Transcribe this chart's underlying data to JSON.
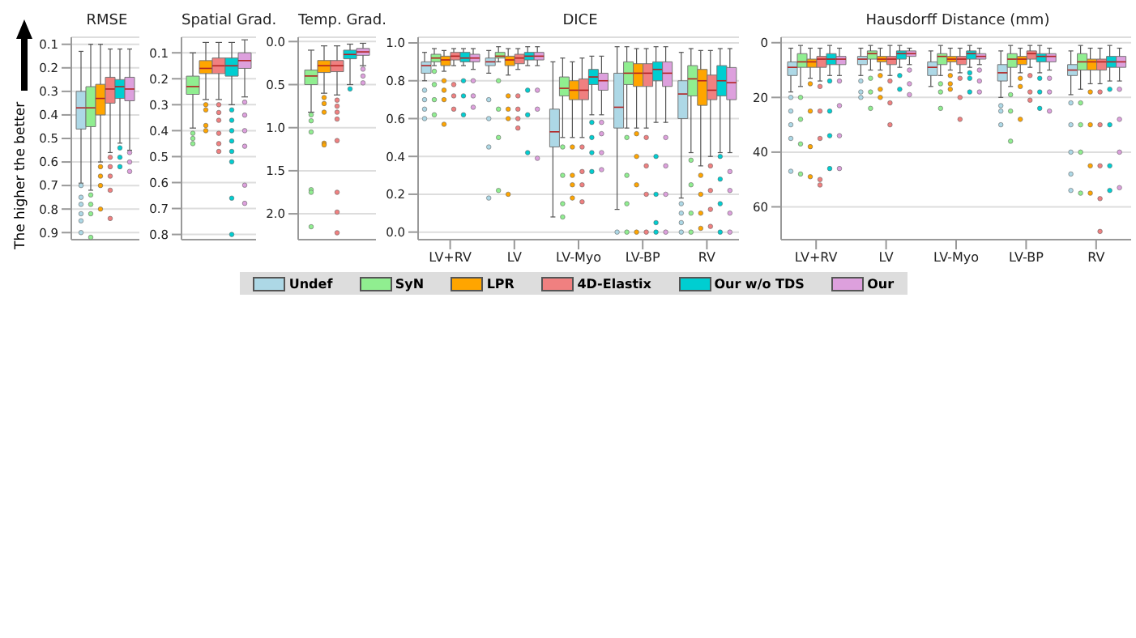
{
  "chart_data": [
    {
      "type": "box",
      "title": "RMSE",
      "ylabel": "The higher the better",
      "categories": [
        null
      ],
      "ylim": [
        0.93,
        0.07
      ],
      "yticks": [
        0.1,
        0.2,
        0.3,
        0.4,
        0.5,
        0.6,
        0.7,
        0.8,
        0.9
      ],
      "grid": "y",
      "tick_labels": "y",
      "series": [
        {
          "color": "#add8e6",
          "boxes": [
            {
              "low": 0.13,
              "q1": 0.3,
              "median": 0.37,
              "q3": 0.46,
              "high": 0.69,
              "outliers": [
                0.7,
                0.75,
                0.78,
                0.82,
                0.85,
                0.9
              ]
            }
          ]
        },
        {
          "color": "#90ee90",
          "boxes": [
            {
              "low": 0.1,
              "q1": 0.28,
              "median": 0.37,
              "q3": 0.45,
              "high": 0.72,
              "outliers": [
                0.74,
                0.78,
                0.82,
                0.92
              ]
            }
          ]
        },
        {
          "color": "#ffa500",
          "boxes": [
            {
              "low": 0.1,
              "q1": 0.27,
              "median": 0.33,
              "q3": 0.4,
              "high": 0.6,
              "outliers": [
                0.62,
                0.66,
                0.7,
                0.8
              ]
            }
          ]
        },
        {
          "color": "#f08080",
          "boxes": [
            {
              "low": 0.12,
              "q1": 0.24,
              "median": 0.29,
              "q3": 0.35,
              "high": 0.56,
              "outliers": [
                0.58,
                0.62,
                0.66,
                0.72,
                0.84
              ]
            }
          ]
        },
        {
          "color": "#00ced1",
          "boxes": [
            {
              "low": 0.12,
              "q1": 0.25,
              "median": 0.28,
              "q3": 0.33,
              "high": 0.52,
              "outliers": [
                0.54,
                0.58,
                0.62
              ]
            }
          ]
        },
        {
          "color": "#dda0dd",
          "boxes": [
            {
              "low": 0.12,
              "q1": 0.24,
              "median": 0.29,
              "q3": 0.34,
              "high": 0.55,
              "outliers": [
                0.56,
                0.6,
                0.64
              ]
            }
          ]
        }
      ]
    },
    {
      "type": "box",
      "title": "Spatial Grad.",
      "categories": [
        null
      ],
      "ylim": [
        0.82,
        0.04
      ],
      "yticks": [
        0.1,
        0.2,
        0.3,
        0.4,
        0.5,
        0.6,
        0.7,
        0.8
      ],
      "grid": "y",
      "tick_labels": "y",
      "series": [
        {
          "color": "#90ee90",
          "boxes": [
            {
              "low": 0.1,
              "q1": 0.19,
              "median": 0.23,
              "q3": 0.26,
              "high": 0.39,
              "outliers": [
                0.41,
                0.43,
                0.45
              ]
            }
          ]
        },
        {
          "color": "#ffa500",
          "boxes": [
            {
              "low": 0.06,
              "q1": 0.13,
              "median": 0.16,
              "q3": 0.18,
              "high": 0.28,
              "outliers": [
                0.3,
                0.32,
                0.38,
                0.4
              ]
            }
          ]
        },
        {
          "color": "#f08080",
          "boxes": [
            {
              "low": 0.06,
              "q1": 0.12,
              "median": 0.15,
              "q3": 0.18,
              "high": 0.28,
              "outliers": [
                0.3,
                0.33,
                0.36,
                0.41,
                0.45,
                0.48
              ]
            }
          ]
        },
        {
          "color": "#00ced1",
          "boxes": [
            {
              "low": 0.06,
              "q1": 0.12,
              "median": 0.15,
              "q3": 0.19,
              "high": 0.3,
              "outliers": [
                0.32,
                0.36,
                0.4,
                0.44,
                0.48,
                0.52,
                0.66,
                0.8
              ]
            }
          ]
        },
        {
          "color": "#dda0dd",
          "boxes": [
            {
              "low": 0.05,
              "q1": 0.1,
              "median": 0.13,
              "q3": 0.16,
              "high": 0.27,
              "outliers": [
                0.29,
                0.34,
                0.4,
                0.46,
                0.61,
                0.68
              ]
            }
          ]
        }
      ]
    },
    {
      "type": "box",
      "title": "Temp. Grad.",
      "categories": [
        null
      ],
      "ylim": [
        2.3,
        -0.05
      ],
      "yticks": [
        {
          "value": 0,
          "label": "0.0"
        },
        0.5,
        {
          "value": 1,
          "label": "1.0"
        },
        1.5,
        {
          "value": 2,
          "label": "2.0"
        }
      ],
      "grid": "y",
      "tick_labels": "y",
      "series": [
        {
          "color": "#90ee90",
          "boxes": [
            {
              "low": 0.1,
              "q1": 0.33,
              "median": 0.4,
              "q3": 0.5,
              "high": 0.82,
              "outliers": [
                0.85,
                0.92,
                1.05,
                1.72,
                1.75,
                2.15
              ]
            }
          ]
        },
        {
          "color": "#ffa500",
          "boxes": [
            {
              "low": 0.05,
              "q1": 0.22,
              "median": 0.28,
              "q3": 0.36,
              "high": 0.6,
              "outliers": [
                0.65,
                0.72,
                0.82,
                1.18,
                1.2
              ]
            }
          ]
        },
        {
          "color": "#f08080",
          "boxes": [
            {
              "low": 0.05,
              "q1": 0.22,
              "median": 0.28,
              "q3": 0.35,
              "high": 0.62,
              "outliers": [
                0.68,
                0.75,
                0.82,
                0.9,
                1.15,
                1.75,
                1.98,
                2.22
              ]
            }
          ]
        },
        {
          "color": "#00ced1",
          "boxes": [
            {
              "low": 0.03,
              "q1": 0.1,
              "median": 0.15,
              "q3": 0.2,
              "high": 0.5,
              "outliers": [
                0.55
              ]
            }
          ]
        },
        {
          "color": "#dda0dd",
          "boxes": [
            {
              "low": 0.02,
              "q1": 0.08,
              "median": 0.12,
              "q3": 0.16,
              "high": 0.28,
              "outliers": [
                0.32,
                0.4,
                0.48
              ]
            }
          ]
        }
      ]
    },
    {
      "type": "box",
      "title": "DICE",
      "categories": [
        "LV+RV",
        "LV",
        "LV-Myo",
        "LV-BP",
        "RV"
      ],
      "ylim": [
        -0.04,
        1.03
      ],
      "yticks": [
        {
          "value": 0,
          "label": "0.0"
        },
        0.2,
        0.4,
        0.6,
        0.8,
        {
          "value": 1,
          "label": "1.0"
        }
      ],
      "grid": "y",
      "legend": "bottom",
      "series": [
        {
          "name": "Undef",
          "color": "#add8e6",
          "boxes": [
            {
              "low": 0.8,
              "q1": 0.84,
              "median": 0.88,
              "q3": 0.9,
              "high": 0.95,
              "outliers": [
                0.6,
                0.65,
                0.7,
                0.75
              ]
            },
            {
              "low": 0.84,
              "q1": 0.88,
              "median": 0.9,
              "q3": 0.92,
              "high": 0.96,
              "outliers": [
                0.18,
                0.45,
                0.6,
                0.7
              ]
            },
            {
              "low": 0.08,
              "q1": 0.45,
              "median": 0.53,
              "q3": 0.65,
              "high": 0.9
            },
            {
              "low": 0.12,
              "q1": 0.55,
              "median": 0.66,
              "q3": 0.84,
              "high": 0.98,
              "outliers": [
                0
              ]
            },
            {
              "low": 0.18,
              "q1": 0.6,
              "median": 0.73,
              "q3": 0.8,
              "high": 0.95,
              "outliers": [
                0,
                0.05,
                0.1,
                0.15
              ]
            }
          ]
        },
        {
          "name": "SyN",
          "color": "#90ee90",
          "boxes": [
            {
              "low": 0.88,
              "q1": 0.9,
              "median": 0.92,
              "q3": 0.94,
              "high": 0.97,
              "outliers": [
                0.62,
                0.7,
                0.78,
                0.85
              ]
            },
            {
              "low": 0.9,
              "q1": 0.92,
              "median": 0.93,
              "q3": 0.95,
              "high": 0.98,
              "outliers": [
                0.22,
                0.5,
                0.65,
                0.8
              ]
            },
            {
              "low": 0.5,
              "q1": 0.72,
              "median": 0.76,
              "q3": 0.82,
              "high": 0.92,
              "outliers": [
                0.08,
                0.15,
                0.3,
                0.45
              ]
            },
            {
              "low": 0.55,
              "q1": 0.78,
              "median": 0.84,
              "q3": 0.9,
              "high": 0.98,
              "outliers": [
                0,
                0.15,
                0.3,
                0.5
              ]
            },
            {
              "low": 0.42,
              "q1": 0.72,
              "median": 0.81,
              "q3": 0.88,
              "high": 0.97,
              "outliers": [
                0,
                0.1,
                0.25,
                0.38
              ]
            }
          ]
        },
        {
          "name": "LPR",
          "color": "#ffa500",
          "boxes": [
            {
              "low": 0.85,
              "q1": 0.88,
              "median": 0.91,
              "q3": 0.93,
              "high": 0.96,
              "outliers": [
                0.57,
                0.7,
                0.75,
                0.8
              ]
            },
            {
              "low": 0.83,
              "q1": 0.88,
              "median": 0.91,
              "q3": 0.93,
              "high": 0.97,
              "outliers": [
                0.2,
                0.6,
                0.65,
                0.72
              ]
            },
            {
              "low": 0.5,
              "q1": 0.7,
              "median": 0.75,
              "q3": 0.8,
              "high": 0.9,
              "outliers": [
                0.18,
                0.25,
                0.3,
                0.45
              ]
            },
            {
              "low": 0.55,
              "q1": 0.77,
              "median": 0.84,
              "q3": 0.89,
              "high": 0.97,
              "outliers": [
                0,
                0.25,
                0.4,
                0.52
              ]
            },
            {
              "low": 0.35,
              "q1": 0.67,
              "median": 0.8,
              "q3": 0.86,
              "high": 0.96,
              "outliers": [
                0.02,
                0.1,
                0.2,
                0.3
              ]
            }
          ]
        },
        {
          "name": "4D-Elastix",
          "color": "#f08080",
          "boxes": [
            {
              "low": 0.88,
              "q1": 0.91,
              "median": 0.93,
              "q3": 0.95,
              "high": 0.97,
              "outliers": [
                0.65,
                0.72,
                0.78
              ]
            },
            {
              "low": 0.86,
              "q1": 0.89,
              "median": 0.92,
              "q3": 0.94,
              "high": 0.97,
              "outliers": [
                0.55,
                0.6,
                0.65,
                0.72
              ]
            },
            {
              "low": 0.5,
              "q1": 0.7,
              "median": 0.75,
              "q3": 0.81,
              "high": 0.92,
              "outliers": [
                0.16,
                0.25,
                0.32,
                0.45
              ]
            },
            {
              "low": 0.55,
              "q1": 0.77,
              "median": 0.84,
              "q3": 0.89,
              "high": 0.97,
              "outliers": [
                0,
                0.2,
                0.35,
                0.5
              ]
            },
            {
              "low": 0.4,
              "q1": 0.7,
              "median": 0.75,
              "q3": 0.83,
              "high": 0.96,
              "outliers": [
                0.03,
                0.12,
                0.22,
                0.35
              ]
            }
          ]
        },
        {
          "name": "Our w/o TDS",
          "color": "#00ced1",
          "boxes": [
            {
              "low": 0.88,
              "q1": 0.9,
              "median": 0.92,
              "q3": 0.95,
              "high": 0.97,
              "outliers": [
                0.62,
                0.72,
                0.8
              ]
            },
            {
              "low": 0.88,
              "q1": 0.91,
              "median": 0.93,
              "q3": 0.95,
              "high": 0.98,
              "outliers": [
                0.42,
                0.62,
                0.75
              ]
            },
            {
              "low": 0.62,
              "q1": 0.78,
              "median": 0.82,
              "q3": 0.86,
              "high": 0.93,
              "outliers": [
                0.32,
                0.42,
                0.5,
                0.58
              ]
            },
            {
              "low": 0.58,
              "q1": 0.8,
              "median": 0.86,
              "q3": 0.9,
              "high": 0.98,
              "outliers": [
                0,
                0.05,
                0.2,
                0.4
              ]
            },
            {
              "low": 0.42,
              "q1": 0.72,
              "median": 0.8,
              "q3": 0.88,
              "high": 0.97,
              "outliers": [
                0,
                0.15,
                0.28,
                0.4
              ]
            }
          ]
        },
        {
          "name": "Our",
          "color": "#dda0dd",
          "boxes": [
            {
              "low": 0.86,
              "q1": 0.9,
              "median": 0.92,
              "q3": 0.94,
              "high": 0.97,
              "outliers": [
                0.66,
                0.72,
                0.8
              ]
            },
            {
              "low": 0.88,
              "q1": 0.91,
              "median": 0.93,
              "q3": 0.95,
              "high": 0.98,
              "outliers": [
                0.39,
                0.65,
                0.75
              ]
            },
            {
              "low": 0.62,
              "q1": 0.75,
              "median": 0.8,
              "q3": 0.84,
              "high": 0.93,
              "outliers": [
                0.33,
                0.42,
                0.52,
                0.58
              ]
            },
            {
              "low": 0.58,
              "q1": 0.77,
              "median": 0.84,
              "q3": 0.9,
              "high": 0.98,
              "outliers": [
                0,
                0.2,
                0.35,
                0.5
              ]
            },
            {
              "low": 0.42,
              "q1": 0.7,
              "median": 0.79,
              "q3": 0.87,
              "high": 0.97,
              "outliers": [
                0,
                0.1,
                0.22,
                0.32
              ]
            }
          ]
        }
      ]
    },
    {
      "type": "box",
      "title": "Hausdorff Distance (mm)",
      "categories": [
        "LV+RV",
        "LV",
        "LV-Myo",
        "LV-BP",
        "RV"
      ],
      "ylim": [
        72,
        -2
      ],
      "yticks": [
        0,
        20,
        40,
        60
      ],
      "grid": "y",
      "series": [
        {
          "color": "#add8e6",
          "boxes": [
            {
              "low": 2,
              "q1": 7,
              "median": 9,
              "q3": 12,
              "high": 18,
              "outliers": [
                20,
                25,
                30,
                35,
                47
              ]
            },
            {
              "low": 2,
              "q1": 5,
              "median": 6,
              "q3": 8,
              "high": 12,
              "outliers": [
                14,
                18,
                20
              ]
            },
            {
              "low": 3,
              "q1": 7,
              "median": 9,
              "q3": 12,
              "high": 16
            },
            {
              "low": 3,
              "q1": 8,
              "median": 11,
              "q3": 14,
              "high": 20,
              "outliers": [
                23,
                25,
                30
              ]
            },
            {
              "low": 3,
              "q1": 8,
              "median": 10,
              "q3": 12,
              "high": 19,
              "outliers": [
                22,
                30,
                40,
                48,
                54
              ]
            }
          ]
        },
        {
          "color": "#90ee90",
          "boxes": [
            {
              "low": 1,
              "q1": 4,
              "median": 7,
              "q3": 9,
              "high": 16,
              "outliers": [
                20,
                28,
                37,
                48
              ]
            },
            {
              "low": 1,
              "q1": 3,
              "median": 4,
              "q3": 6,
              "high": 10,
              "outliers": [
                13,
                18,
                24
              ]
            },
            {
              "low": 1,
              "q1": 4,
              "median": 5,
              "q3": 8,
              "high": 12,
              "outliers": [
                15,
                18,
                24
              ]
            },
            {
              "low": 1,
              "q1": 4,
              "median": 6,
              "q3": 9,
              "high": 16,
              "outliers": [
                19,
                25,
                36
              ]
            },
            {
              "low": 1,
              "q1": 4,
              "median": 7,
              "q3": 10,
              "high": 17,
              "outliers": [
                22,
                30,
                40,
                55
              ]
            }
          ]
        },
        {
          "color": "#ffa500",
          "boxes": [
            {
              "low": 2,
              "q1": 6,
              "median": 7,
              "q3": 9,
              "high": 13,
              "outliers": [
                15,
                25,
                38,
                49
              ]
            },
            {
              "low": 2,
              "q1": 5,
              "median": 6,
              "q3": 7,
              "high": 10,
              "outliers": [
                12,
                17,
                20
              ]
            },
            {
              "low": 2,
              "q1": 5,
              "median": 6,
              "q3": 7,
              "high": 10,
              "outliers": [
                12,
                15,
                17
              ]
            },
            {
              "low": 2,
              "q1": 5,
              "median": 6,
              "q3": 8,
              "high": 11,
              "outliers": [
                13,
                16,
                28
              ]
            },
            {
              "low": 2,
              "q1": 6,
              "median": 7,
              "q3": 10,
              "high": 15,
              "outliers": [
                18,
                30,
                45,
                55
              ]
            }
          ]
        },
        {
          "color": "#f08080",
          "boxes": [
            {
              "low": 2,
              "q1": 5,
              "median": 6,
              "q3": 9,
              "high": 14,
              "outliers": [
                16,
                25,
                35,
                50,
                52
              ]
            },
            {
              "low": 1,
              "q1": 5,
              "median": 6,
              "q3": 8,
              "high": 12,
              "outliers": [
                14,
                22,
                30
              ]
            },
            {
              "low": 2,
              "q1": 5,
              "median": 6,
              "q3": 8,
              "high": 11,
              "outliers": [
                13,
                20,
                28
              ]
            },
            {
              "low": 1,
              "q1": 3,
              "median": 4,
              "q3": 6,
              "high": 9,
              "outliers": [
                12,
                18,
                21
              ]
            },
            {
              "low": 2,
              "q1": 6,
              "median": 7,
              "q3": 10,
              "high": 15,
              "outliers": [
                18,
                30,
                45,
                57,
                69
              ]
            }
          ]
        },
        {
          "color": "#00ced1",
          "boxes": [
            {
              "low": 1,
              "q1": 4,
              "median": 6,
              "q3": 8,
              "high": 12,
              "outliers": [
                14,
                25,
                34,
                46
              ]
            },
            {
              "low": 1,
              "q1": 3,
              "median": 4,
              "q3": 6,
              "high": 9,
              "outliers": [
                12,
                17
              ]
            },
            {
              "low": 1,
              "q1": 3,
              "median": 4,
              "q3": 6,
              "high": 9,
              "outliers": [
                11,
                13,
                18
              ]
            },
            {
              "low": 1,
              "q1": 4,
              "median": 5,
              "q3": 7,
              "high": 11,
              "outliers": [
                13,
                18,
                24
              ]
            },
            {
              "low": 1,
              "q1": 5,
              "median": 7,
              "q3": 9,
              "high": 14,
              "outliers": [
                17,
                30,
                45,
                54
              ]
            }
          ]
        },
        {
          "color": "#dda0dd",
          "boxes": [
            {
              "low": 2,
              "q1": 5,
              "median": 6,
              "q3": 8,
              "high": 12,
              "outliers": [
                14,
                23,
                34,
                46
              ]
            },
            {
              "low": 2,
              "q1": 3,
              "median": 4,
              "q3": 5,
              "high": 8,
              "outliers": [
                10,
                15,
                19
              ]
            },
            {
              "low": 2,
              "q1": 4,
              "median": 5,
              "q3": 6,
              "high": 8,
              "outliers": [
                10,
                14,
                18
              ]
            },
            {
              "low": 2,
              "q1": 4,
              "median": 5,
              "q3": 7,
              "high": 10,
              "outliers": [
                13,
                18,
                25
              ]
            },
            {
              "low": 2,
              "q1": 5,
              "median": 7,
              "q3": 9,
              "high": 14,
              "outliers": [
                17,
                28,
                40,
                53
              ]
            }
          ]
        }
      ]
    }
  ]
}
